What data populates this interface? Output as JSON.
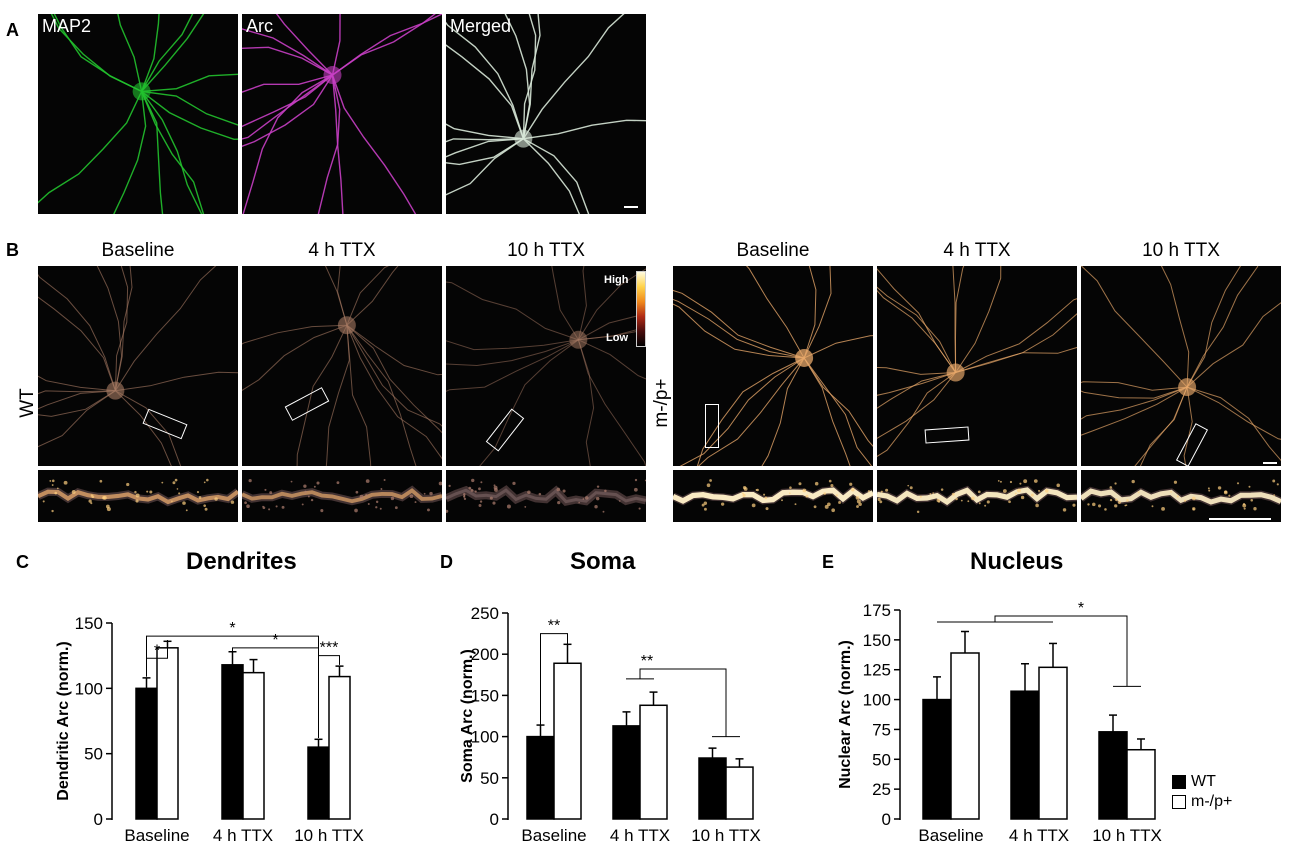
{
  "panel_letters": {
    "A": "A",
    "B": "B",
    "C": "C",
    "D": "D",
    "E": "E"
  },
  "panel_a": {
    "channels": [
      {
        "label": "MAP2",
        "color": "#22c22e"
      },
      {
        "label": "Arc",
        "color": "#c83fc4"
      },
      {
        "label": "Merged",
        "color": "#d8e8d8"
      }
    ]
  },
  "panel_b": {
    "groups": [
      {
        "genotype": "WT",
        "conditions": [
          "Baseline",
          "4 h TTX",
          "10 h TTX"
        ]
      },
      {
        "genotype": "m-/p+",
        "conditions": [
          "Baseline",
          "4 h TTX",
          "10 h TTX"
        ]
      }
    ],
    "lut": {
      "high": "High",
      "low": "Low"
    }
  },
  "chart_data": [
    {
      "type": "bar",
      "panel": "C",
      "title": "Dendrites",
      "ylabel": "Dendritic Arc (norm.)",
      "categories": [
        "Baseline",
        "4 h TTX",
        "10 h TTX"
      ],
      "ylim": [
        0,
        150
      ],
      "yticks": [
        0,
        50,
        100,
        150
      ],
      "series": [
        {
          "name": "WT",
          "values": [
            100,
            118,
            55
          ],
          "errors": [
            8,
            10,
            6
          ]
        },
        {
          "name": "m-/p+",
          "values": [
            131,
            112,
            109
          ],
          "errors": [
            5,
            10,
            8
          ]
        }
      ],
      "annotations": [
        "*",
        "*",
        "*",
        "***"
      ]
    },
    {
      "type": "bar",
      "panel": "D",
      "title": "Soma",
      "ylabel": "Soma Arc (norm.)",
      "categories": [
        "Baseline",
        "4 h TTX",
        "10 h TTX"
      ],
      "ylim": [
        0,
        250
      ],
      "yticks": [
        0,
        50,
        100,
        150,
        200,
        250
      ],
      "series": [
        {
          "name": "WT",
          "values": [
            100,
            113,
            74
          ],
          "errors": [
            14,
            17,
            12
          ]
        },
        {
          "name": "m-/p+",
          "values": [
            189,
            138,
            63
          ],
          "errors": [
            23,
            16,
            10
          ]
        }
      ],
      "annotations": [
        "**",
        "**"
      ]
    },
    {
      "type": "bar",
      "panel": "E",
      "title": "Nucleus",
      "ylabel": "Nuclear Arc (norm.)",
      "categories": [
        "Baseline",
        "4 h TTX",
        "10 h TTX"
      ],
      "ylim": [
        0,
        175
      ],
      "yticks": [
        0,
        25,
        50,
        75,
        100,
        125,
        150,
        175
      ],
      "series": [
        {
          "name": "WT",
          "values": [
            100,
            107,
            73
          ],
          "errors": [
            19,
            23,
            14
          ]
        },
        {
          "name": "m-/p+",
          "values": [
            139,
            127,
            58
          ],
          "errors": [
            18,
            20,
            9
          ]
        }
      ],
      "annotations": [
        "*"
      ]
    }
  ],
  "legend": {
    "items": [
      {
        "label": "WT",
        "fill": "#000000"
      },
      {
        "label": "m-/p+",
        "fill": "#ffffff"
      }
    ]
  }
}
